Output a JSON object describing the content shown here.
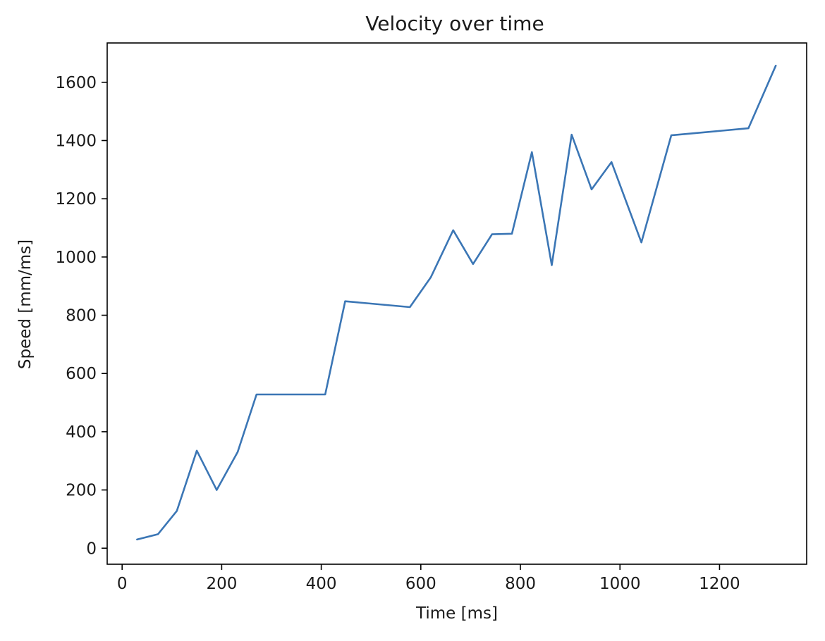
{
  "chart_data": {
    "type": "line",
    "title": "Velocity over time",
    "xlabel": "Time [ms]",
    "ylabel": "Speed [mm/ms]",
    "xlim": [
      -30,
      1375
    ],
    "ylim": [
      -55,
      1735
    ],
    "xticks": [
      0,
      200,
      400,
      600,
      800,
      1000,
      1200
    ],
    "yticks": [
      0,
      200,
      400,
      600,
      800,
      1000,
      1200,
      1400,
      1600
    ],
    "grid": false,
    "series": [
      {
        "color": "#3b76b5",
        "x": [
          30,
          72,
          110,
          150,
          190,
          232,
          270,
          310,
          408,
          448,
          578,
          620,
          665,
          705,
          743,
          783,
          823,
          863,
          903,
          943,
          983,
          1043,
          1103,
          1258,
          1313
        ],
        "y": [
          30,
          48,
          128,
          335,
          200,
          330,
          528,
          528,
          528,
          848,
          828,
          930,
          1092,
          976,
          1078,
          1080,
          1360,
          972,
          1420,
          1232,
          1326,
          1050,
          1418,
          1442,
          1657
        ]
      }
    ]
  }
}
